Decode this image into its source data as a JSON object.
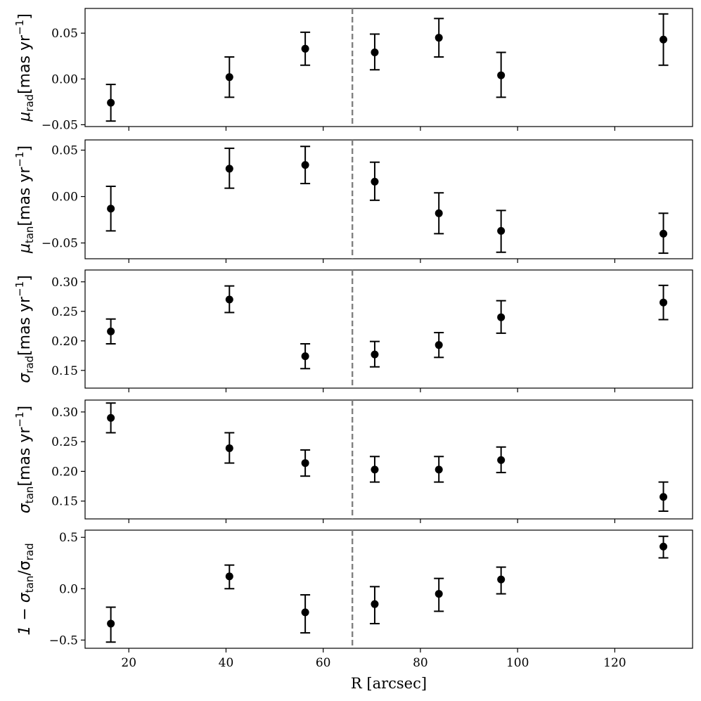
{
  "chart_data": {
    "type": "scatter",
    "shared_x": {
      "label": "R [arcsec]",
      "lim": [
        11,
        136
      ],
      "ticks": [
        20,
        40,
        60,
        80,
        100,
        120
      ],
      "tick_labels": [
        "20",
        "40",
        "60",
        "80",
        "100",
        "120"
      ]
    },
    "vline_x": 66,
    "marker_color": "#000000",
    "vline_color": "#808080",
    "x": [
      16.3,
      40.7,
      56.3,
      70.6,
      83.8,
      96.6,
      130.0
    ],
    "panels": [
      {
        "ylabel_main": "μ",
        "ylabel_sub": "rad",
        "ylabel_unit": "[mas yr",
        "ylabel_exp": "−1",
        "ylabel_close": "]",
        "ylim": [
          -0.052,
          0.077
        ],
        "yticks": [
          -0.05,
          0.0,
          0.05
        ],
        "ytick_labels": [
          "−0.05",
          "0.00",
          "0.05"
        ],
        "y": [
          -0.026,
          0.002,
          0.033,
          0.029,
          0.045,
          0.004,
          0.043
        ],
        "yerr_low": [
          -0.046,
          -0.02,
          0.015,
          0.01,
          0.024,
          -0.02,
          0.015
        ],
        "yerr_high": [
          -0.006,
          0.024,
          0.051,
          0.049,
          0.066,
          0.029,
          0.071
        ]
      },
      {
        "ylabel_main": "μ",
        "ylabel_sub": "tan",
        "ylabel_unit": "[mas yr",
        "ylabel_exp": "−1",
        "ylabel_close": "]",
        "ylim": [
          -0.067,
          0.061
        ],
        "yticks": [
          -0.05,
          0.0,
          0.05
        ],
        "ytick_labels": [
          "−0.05",
          "0.00",
          "0.05"
        ],
        "y": [
          -0.013,
          0.03,
          0.034,
          0.016,
          -0.018,
          -0.037,
          -0.04
        ],
        "yerr_low": [
          -0.037,
          0.009,
          0.014,
          -0.004,
          -0.04,
          -0.06,
          -0.061
        ],
        "yerr_high": [
          0.011,
          0.052,
          0.054,
          0.037,
          0.004,
          -0.015,
          -0.018
        ]
      },
      {
        "ylabel_main": "σ",
        "ylabel_sub": "rad",
        "ylabel_unit": "[mas yr",
        "ylabel_exp": "−1",
        "ylabel_close": "]",
        "ylim": [
          0.12,
          0.32
        ],
        "yticks": [
          0.15,
          0.2,
          0.25,
          0.3
        ],
        "ytick_labels": [
          "0.15",
          "0.20",
          "0.25",
          "0.30"
        ],
        "y": [
          0.216,
          0.27,
          0.174,
          0.177,
          0.193,
          0.24,
          0.265
        ],
        "yerr_low": [
          0.195,
          0.248,
          0.153,
          0.156,
          0.172,
          0.213,
          0.236
        ],
        "yerr_high": [
          0.237,
          0.293,
          0.195,
          0.199,
          0.214,
          0.268,
          0.294
        ]
      },
      {
        "ylabel_main": "σ",
        "ylabel_sub": "tan",
        "ylabel_unit": "[mas yr",
        "ylabel_exp": "−1",
        "ylabel_close": "]",
        "ylim": [
          0.12,
          0.32
        ],
        "yticks": [
          0.15,
          0.2,
          0.25,
          0.3
        ],
        "ytick_labels": [
          "0.15",
          "0.20",
          "0.25",
          "0.30"
        ],
        "y": [
          0.29,
          0.239,
          0.214,
          0.203,
          0.203,
          0.219,
          0.157
        ],
        "yerr_low": [
          0.265,
          0.214,
          0.192,
          0.182,
          0.182,
          0.198,
          0.133
        ],
        "yerr_high": [
          0.315,
          0.265,
          0.236,
          0.225,
          0.225,
          0.241,
          0.182
        ]
      },
      {
        "ylabel_main": "1 − σ",
        "ylabel_sub": "tan",
        "ylabel_unit": "/σ",
        "ylabel_unit_sub": "rad",
        "ylim": [
          -0.58,
          0.57
        ],
        "yticks": [
          -0.5,
          0.0,
          0.5
        ],
        "ytick_labels": [
          "−0.5",
          "0.0",
          "0.5"
        ],
        "y": [
          -0.34,
          0.12,
          -0.23,
          -0.15,
          -0.05,
          0.09,
          0.41
        ],
        "yerr_low": [
          -0.52,
          0.0,
          -0.43,
          -0.34,
          -0.22,
          -0.05,
          0.3
        ],
        "yerr_high": [
          -0.18,
          0.23,
          -0.06,
          0.02,
          0.1,
          0.21,
          0.51
        ]
      }
    ]
  }
}
